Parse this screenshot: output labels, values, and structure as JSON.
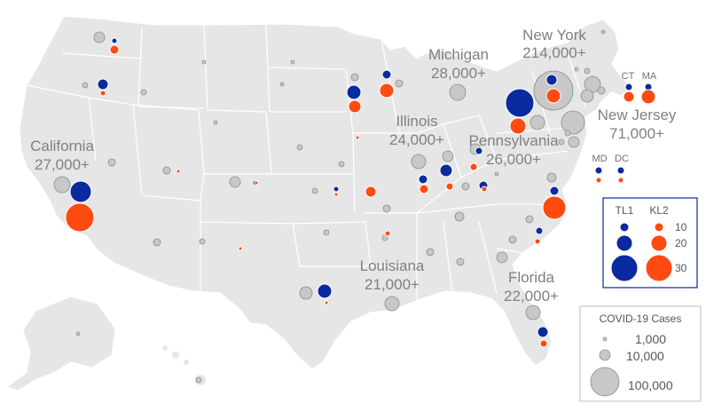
{
  "colors": {
    "land": "#e6e6e6",
    "border": "#ffffff",
    "cases": "#c8c8c8",
    "cases_stroke": "#8c8c8c",
    "tl1": "#0a2aa0",
    "kl2": "#ff4a12",
    "marker_stroke": "#ffffff",
    "label": "#808080",
    "legend_box": "#0a2aa0"
  },
  "labels": {
    "new_york": [
      "New York",
      "214,000+"
    ],
    "michigan": [
      "Michigan",
      "28,000+"
    ],
    "new_jersey": [
      "New Jersey",
      "71,000+"
    ],
    "california": [
      "California",
      "27,000+"
    ],
    "illinois": [
      "Illinois",
      "24,000+"
    ],
    "pennsylvania": [
      "Pennsylvania",
      "26,000+"
    ],
    "louisiana": [
      "Louisiana",
      "21,000+"
    ],
    "florida": [
      "Florida",
      "22,000+"
    ],
    "ct": "CT",
    "ma": "MA",
    "md": "MD",
    "dc": "DC"
  },
  "legend_tl_kl": {
    "tl1_label": "TL1",
    "kl2_label": "KL2",
    "values": [
      "10",
      "20",
      "30"
    ]
  },
  "legend_cases": {
    "title": "COVID-19 Cases",
    "values": [
      "1,000",
      "10,000",
      "100,000"
    ]
  },
  "symbols": {
    "case_bubbles": [
      {
        "id": "ny",
        "r": 22
      },
      {
        "id": "nj",
        "r": 13
      },
      {
        "id": "ma-state",
        "r": 9
      },
      {
        "id": "ct-state",
        "r": 7
      },
      {
        "id": "ca",
        "r": 9
      },
      {
        "id": "mi",
        "r": 9
      },
      {
        "id": "il",
        "r": 8
      },
      {
        "id": "pa",
        "r": 8
      },
      {
        "id": "la",
        "r": 8
      },
      {
        "id": "fl",
        "r": 8
      },
      {
        "id": "wa",
        "r": 6
      },
      {
        "id": "co",
        "r": 6
      },
      {
        "id": "tx",
        "r": 7
      },
      {
        "id": "ga",
        "r": 6
      },
      {
        "id": "oh",
        "r": 6
      },
      {
        "id": "in",
        "r": 6
      },
      {
        "id": "mn",
        "r": 4
      },
      {
        "id": "wi",
        "r": 4
      },
      {
        "id": "md-state",
        "r": 6
      },
      {
        "id": "ri",
        "r": 4
      },
      {
        "id": "va",
        "r": 5
      },
      {
        "id": "nc",
        "r": 4
      },
      {
        "id": "sc",
        "r": 4
      },
      {
        "id": "tn",
        "r": 5
      },
      {
        "id": "al",
        "r": 4
      },
      {
        "id": "ms",
        "r": 4
      },
      {
        "id": "ky",
        "r": 4
      },
      {
        "id": "az",
        "r": 4
      },
      {
        "id": "nv",
        "r": 4
      },
      {
        "id": "ut",
        "r": 4
      },
      {
        "id": "ok",
        "r": 3
      },
      {
        "id": "mo",
        "r": 4
      },
      {
        "id": "ia",
        "r": 3
      },
      {
        "id": "ks",
        "r": 3
      },
      {
        "id": "ar",
        "r": 3
      },
      {
        "id": "or",
        "r": 3
      },
      {
        "id": "id",
        "r": 3
      },
      {
        "id": "ne",
        "r": 3
      },
      {
        "id": "nm",
        "r": 3
      },
      {
        "id": "nh",
        "r": 3
      },
      {
        "id": "vt",
        "r": 2
      },
      {
        "id": "me",
        "r": 2
      },
      {
        "id": "dc-state",
        "r": 3
      },
      {
        "id": "de",
        "r": 3
      },
      {
        "id": "wv",
        "r": 2
      },
      {
        "id": "sd",
        "r": 2
      },
      {
        "id": "nd",
        "r": 2
      },
      {
        "id": "mt",
        "r": 2
      },
      {
        "id": "wy",
        "r": 2
      },
      {
        "id": "ak",
        "r": 2
      },
      {
        "id": "hi",
        "r": 3
      }
    ],
    "tl1_markers": [
      {
        "id": "mi",
        "r": 16
      },
      {
        "id": "ca",
        "r": 12
      },
      {
        "id": "tx",
        "r": 8
      },
      {
        "id": "mn",
        "r": 8
      },
      {
        "id": "ny",
        "r": 6
      },
      {
        "id": "in",
        "r": 7
      },
      {
        "id": "or",
        "r": 6
      },
      {
        "id": "va",
        "r": 5
      },
      {
        "id": "fl",
        "r": 6
      },
      {
        "id": "wi",
        "r": 5
      },
      {
        "id": "il",
        "r": 5
      },
      {
        "id": "oh",
        "r": 5
      },
      {
        "id": "pa",
        "r": 4
      },
      {
        "id": "ma",
        "r": 4
      },
      {
        "id": "ct",
        "r": 4
      },
      {
        "id": "md",
        "r": 4
      },
      {
        "id": "dc",
        "r": 4
      },
      {
        "id": "nc",
        "r": 4
      },
      {
        "id": "wa",
        "r": 3
      },
      {
        "id": "co",
        "r": 3
      },
      {
        "id": "mo",
        "r": 3
      }
    ],
    "kl2_markers": [
      {
        "id": "ca",
        "r": 16
      },
      {
        "id": "va",
        "r": 13
      },
      {
        "id": "ma",
        "r": 8
      },
      {
        "id": "pa",
        "r": 9
      },
      {
        "id": "ny",
        "r": 8
      },
      {
        "id": "wi",
        "r": 8
      },
      {
        "id": "mi",
        "r": 7
      },
      {
        "id": "ct",
        "r": 6
      },
      {
        "id": "mn",
        "r": 6
      },
      {
        "id": "wa",
        "r": 5
      },
      {
        "id": "in",
        "r": 5
      },
      {
        "id": "il",
        "r": 4
      },
      {
        "id": "oh",
        "r": 4
      },
      {
        "id": "fl",
        "r": 4
      },
      {
        "id": "or",
        "r": 3
      },
      {
        "id": "md",
        "r": 3
      },
      {
        "id": "dc",
        "r": 3
      },
      {
        "id": "nc",
        "r": 3
      },
      {
        "id": "ky",
        "r": 3
      },
      {
        "id": "ar",
        "r": 3
      },
      {
        "id": "tx",
        "r": 2
      },
      {
        "id": "co",
        "r": 2
      },
      {
        "id": "nm",
        "r": 2
      },
      {
        "id": "ut",
        "r": 2
      },
      {
        "id": "mo",
        "r": 2
      },
      {
        "id": "ia",
        "r": 2
      }
    ]
  }
}
